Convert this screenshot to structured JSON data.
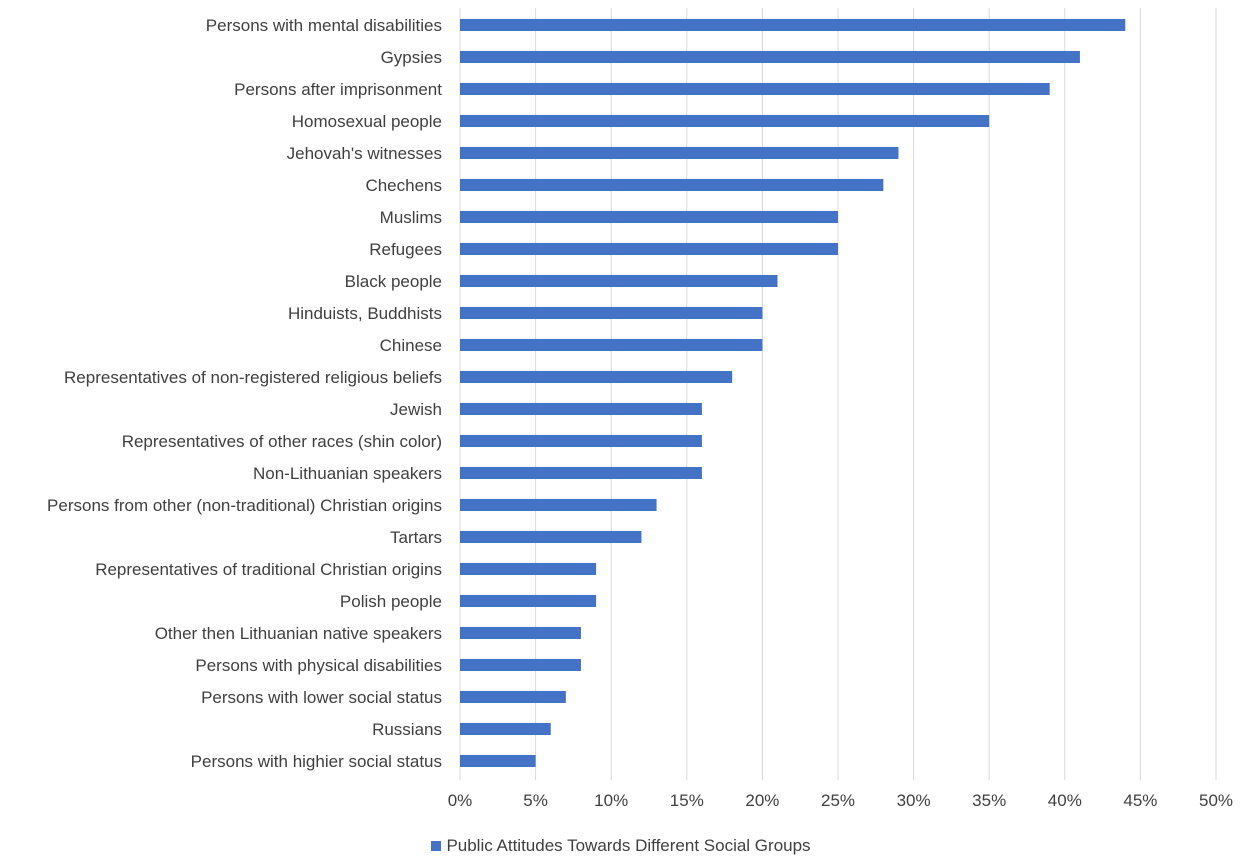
{
  "chart_data": {
    "type": "bar",
    "orientation": "horizontal",
    "categories": [
      "Persons with mental disabilities",
      "Gypsies",
      "Persons after imprisonment",
      "Homosexual people",
      "Jehovah's witnesses",
      "Chechens",
      "Muslims",
      "Refugees",
      "Black people",
      "Hinduists, Buddhists",
      "Chinese",
      "Representatives of non-registered religious beliefs",
      "Jewish",
      "Representatives of other races (shin color)",
      "Non-Lithuanian speakers",
      "Persons from other (non-traditional) Christian origins",
      "Tartars",
      "Representatives of traditional Christian origins",
      "Polish people",
      "Other then Lithuanian native speakers",
      "Persons with physical disabilities",
      "Persons with lower social status",
      "Russians",
      "Persons with highier social status"
    ],
    "series": [
      {
        "name": "Public Attitudes Towards Different Social Groups",
        "color": "#4472c4",
        "values": [
          44,
          41,
          39,
          35,
          29,
          28,
          25,
          25,
          21,
          20,
          20,
          18,
          16,
          16,
          16,
          13,
          12,
          9,
          9,
          8,
          8,
          7,
          6,
          5
        ]
      }
    ],
    "x_ticks": [
      "0%",
      "5%",
      "10%",
      "15%",
      "20%",
      "25%",
      "30%",
      "35%",
      "40%",
      "45%",
      "50%"
    ],
    "xlim": [
      0,
      50
    ],
    "x_unit": "percent",
    "grid": true,
    "legend_position": "bottom"
  }
}
